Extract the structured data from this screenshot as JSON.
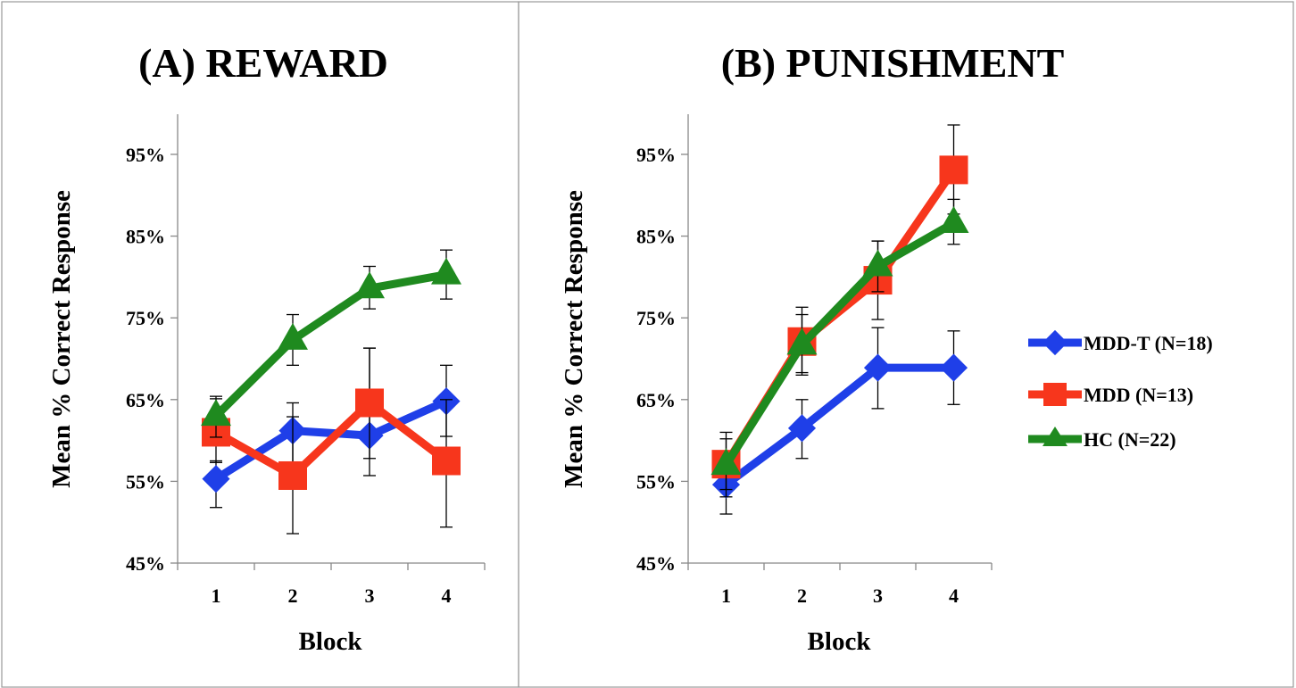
{
  "series_style": [
    {
      "name": "MDD-T (N=18)",
      "color": "#1f3fe8",
      "marker": "diamond"
    },
    {
      "name": "MDD (N=13)",
      "color": "#f7361c",
      "marker": "square"
    },
    {
      "name": "HC (N=22)",
      "color": "#1f8a1f",
      "marker": "triangle"
    }
  ],
  "chart_data": [
    {
      "type": "line",
      "title": "(A) REWARD",
      "xlabel": "Block",
      "ylabel": "Mean % Correct Response",
      "categories": [
        "1",
        "2",
        "3",
        "4"
      ],
      "ylim": [
        45,
        100
      ],
      "yticks": [
        "45%",
        "55%",
        "65%",
        "75%",
        "85%",
        "95%"
      ],
      "series": [
        {
          "name": "MDD-T (N=18)",
          "values": [
            55.3,
            61.2,
            60.6,
            64.8
          ],
          "err_upper": [
            57.5,
            64.6,
            71.3,
            69.2
          ],
          "err_lower": [
            51.8,
            57.1,
            55.7,
            60.5
          ]
        },
        {
          "name": "MDD (N=13)",
          "values": [
            61.0,
            55.7,
            64.6,
            57.5
          ],
          "err_upper": [
            65.1,
            62.9,
            71.3,
            65.0
          ],
          "err_lower": [
            57.3,
            48.6,
            57.8,
            49.4
          ]
        },
        {
          "name": "HC (N=22)",
          "values": [
            63.0,
            72.3,
            78.6,
            80.3
          ],
          "err_upper": [
            65.4,
            75.4,
            81.3,
            83.3
          ],
          "err_lower": [
            60.4,
            69.2,
            76.1,
            77.3
          ]
        }
      ]
    },
    {
      "type": "line",
      "title": "(B) PUNISHMENT",
      "xlabel": "Block",
      "ylabel": "Mean % Correct Response",
      "categories": [
        "1",
        "2",
        "3",
        "4"
      ],
      "ylim": [
        45,
        100
      ],
      "yticks": [
        "45%",
        "55%",
        "65%",
        "75%",
        "85%",
        "95%"
      ],
      "series": [
        {
          "name": "MDD-T (N=18)",
          "values": [
            54.6,
            61.5,
            68.9,
            68.9
          ],
          "err_upper": [
            58.3,
            65.0,
            73.8,
            73.4
          ],
          "err_lower": [
            51.0,
            57.8,
            63.9,
            64.4
          ]
        },
        {
          "name": "MDD (N=13)",
          "values": [
            57.1,
            72.1,
            79.6,
            93.1
          ],
          "err_upper": [
            60.2,
            76.3,
            84.4,
            98.6
          ],
          "err_lower": [
            54.0,
            68.0,
            74.8,
            87.7
          ]
        },
        {
          "name": "HC (N=22)",
          "values": [
            57.0,
            71.7,
            81.3,
            86.6
          ],
          "err_upper": [
            61.0,
            75.4,
            84.4,
            89.5
          ],
          "err_lower": [
            53.1,
            68.3,
            78.2,
            84.0
          ]
        }
      ]
    }
  ]
}
